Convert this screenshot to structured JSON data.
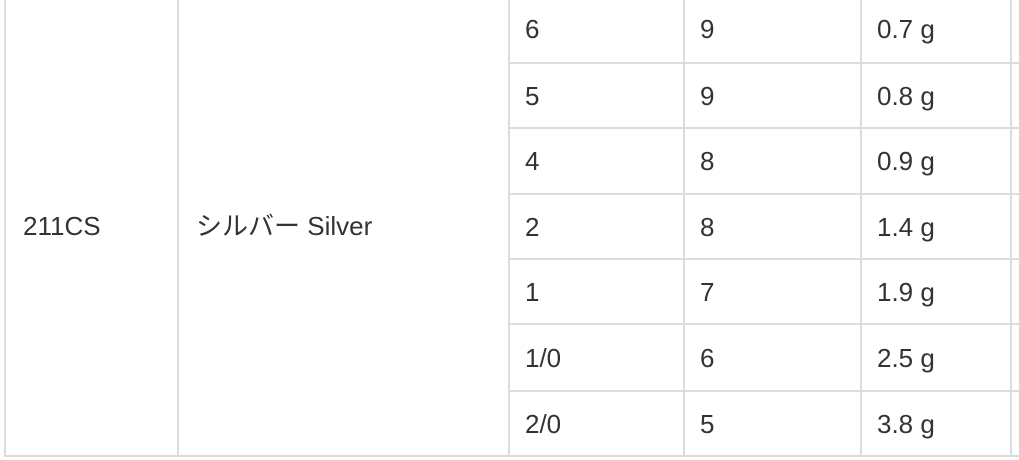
{
  "spec_table": {
    "model": "211CS",
    "color_label": "シルバー Silver",
    "rows": [
      {
        "size": "6",
        "count": "9",
        "weight": "0.7 g"
      },
      {
        "size": "5",
        "count": "9",
        "weight": "0.8 g"
      },
      {
        "size": "4",
        "count": "8",
        "weight": "0.9 g"
      },
      {
        "size": "2",
        "count": "8",
        "weight": "1.4 g"
      },
      {
        "size": "1",
        "count": "7",
        "weight": "1.9 g"
      },
      {
        "size": "1/0",
        "count": "6",
        "weight": "2.5 g"
      },
      {
        "size": "2/0",
        "count": "5",
        "weight": "3.8 g"
      }
    ]
  },
  "colors": {
    "background": "#ffffff",
    "grid_line": "#dcdcdc",
    "text": "#333333"
  }
}
